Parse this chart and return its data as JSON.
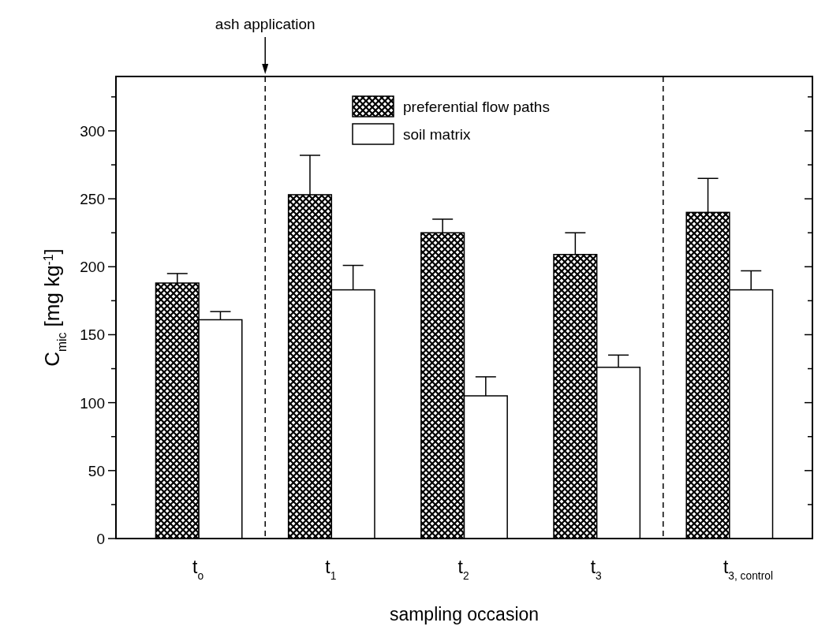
{
  "chart_data": {
    "type": "bar",
    "categories": [
      "t$_{o}$",
      "t$_{1}$",
      "t$_{2}$",
      "t$_{3}$",
      "t$_{3, control}$"
    ],
    "series": [
      {
        "name": "preferential flow paths",
        "color": "#000000",
        "values": [
          188,
          253,
          225,
          209,
          240
        ],
        "errors": [
          7,
          29,
          10,
          16,
          25
        ]
      },
      {
        "name": "soil matrix",
        "color": "#ffffff",
        "values": [
          161,
          183,
          105,
          126,
          183
        ],
        "errors": [
          6,
          18,
          14,
          9,
          14
        ]
      }
    ],
    "xlabel": "sampling occasion",
    "ylabel": "C$_{mic}$ [mg kg$^{-1}$]",
    "ylim": [
      0,
      340
    ],
    "yticks": [
      0,
      {
        "value": 25,
        "label": null
      },
      50,
      {
        "value": 75,
        "label": null
      },
      100,
      {
        "value": 125,
        "label": null
      },
      150,
      {
        "value": 175,
        "label": null
      },
      200,
      {
        "value": 225,
        "label": null
      },
      250,
      {
        "value": 275,
        "label": null
      },
      300,
      {
        "value": 325,
        "label": null
      }
    ],
    "annotations": [
      "ash application"
    ],
    "legend": "top",
    "grid": false
  }
}
